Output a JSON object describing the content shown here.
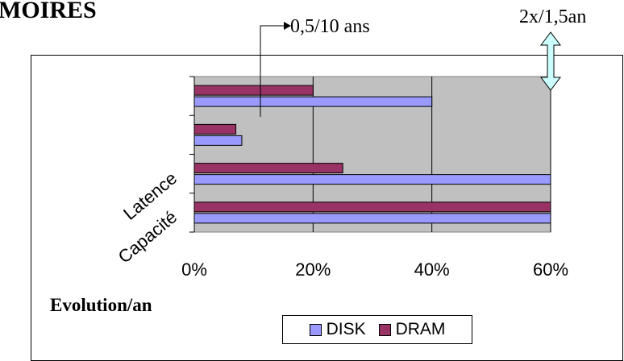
{
  "page": {
    "title": "MOIRES",
    "annotation_rate": "0,5/10 ans",
    "annotation_double": "2x/1,5an"
  },
  "chart_data": {
    "type": "bar",
    "orientation": "horizontal",
    "title": "",
    "xlabel": "Evolution/an",
    "ylabel": "",
    "xlim": [
      0,
      0.6
    ],
    "x_ticks": [
      "0%",
      "20%",
      "40%",
      "60%"
    ],
    "categories": [
      "Capacité",
      "Latence",
      "",
      ""
    ],
    "legend_position": "bottom",
    "grid": true,
    "series": [
      {
        "name": "DISK",
        "color": "#9999ff",
        "values": [
          0.6,
          0.6,
          0.08,
          0.4
        ]
      },
      {
        "name": "DRAM",
        "color": "#993366",
        "values": [
          0.6,
          0.25,
          0.07,
          0.2
        ]
      }
    ]
  }
}
